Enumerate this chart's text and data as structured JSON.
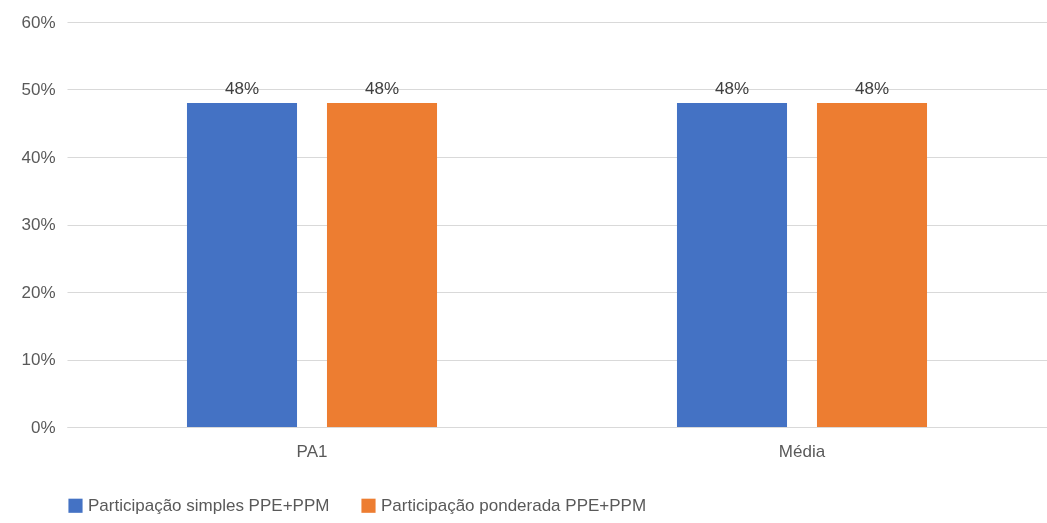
{
  "chart_data": {
    "type": "bar",
    "categories": [
      "PA1",
      "Média"
    ],
    "series": [
      {
        "name": "Participação simples PPE+PPM",
        "color": "#4472c4",
        "values": [
          48,
          48
        ],
        "value_labels": [
          "48%",
          "48%"
        ]
      },
      {
        "name": "Participação ponderada PPE+PPM",
        "color": "#ed7d31",
        "values": [
          48,
          48
        ],
        "value_labels": [
          "48%",
          "48%"
        ]
      }
    ],
    "ylim": [
      0,
      60
    ],
    "yticks": [
      {
        "value": 0,
        "label": "0%"
      },
      {
        "value": 10,
        "label": "10%"
      },
      {
        "value": 20,
        "label": "20%"
      },
      {
        "value": 30,
        "label": "30%"
      },
      {
        "value": 40,
        "label": "40%"
      },
      {
        "value": 50,
        "label": "50%"
      },
      {
        "value": 60,
        "label": "60%"
      }
    ],
    "grid": "y",
    "legend": "bottom"
  }
}
